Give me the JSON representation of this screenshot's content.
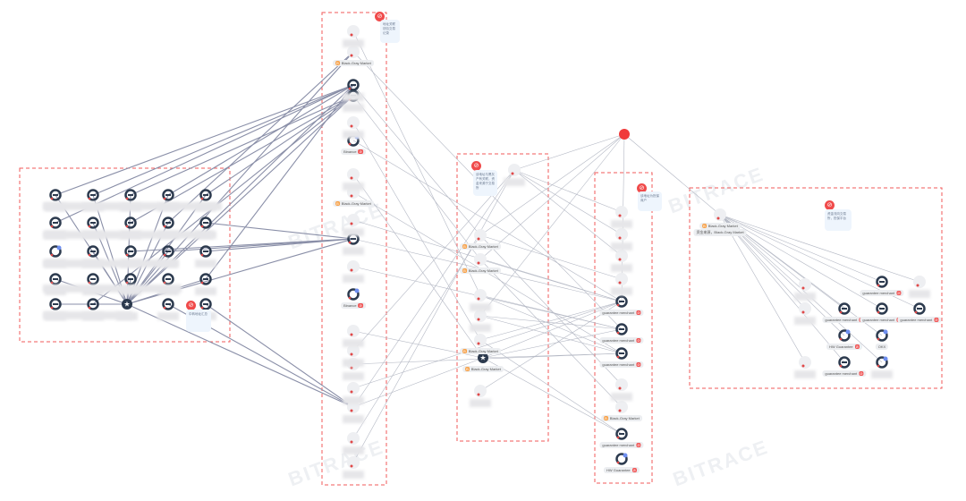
{
  "watermark": "BITRACE",
  "notes": [
    {
      "id": "n1",
      "text": "地址关联钱包交易记录"
    },
    {
      "id": "n2",
      "text": "该地址与黑灰产有关联，资金来源于交易所"
    },
    {
      "id": "n3",
      "text": "该地址为担保商户"
    },
    {
      "id": "n4",
      "text": "资金流向交易所，担保平台"
    },
    {
      "id": "n5",
      "text": "中转地址汇总"
    }
  ],
  "labels": {
    "black_gray_market": "Black-Gray Market",
    "binance": "Binance",
    "guarantee_merchant": "guarantee merchant",
    "hw_guarantee": "HW Guarantee",
    "okx": "OKX",
    "hub_sub": "资金来源，Black-Gray Market"
  },
  "nodes": [
    {
      "id": "L1",
      "type": "dark"
    },
    {
      "id": "L2",
      "type": "dark"
    },
    {
      "id": "L3",
      "type": "dark"
    },
    {
      "id": "L4",
      "type": "dark"
    },
    {
      "id": "L5",
      "type": "dark"
    },
    {
      "id": "L6",
      "type": "dark"
    },
    {
      "id": "L7",
      "type": "dark"
    },
    {
      "id": "L8",
      "type": "dark"
    },
    {
      "id": "L9",
      "type": "dark"
    },
    {
      "id": "L10",
      "type": "dark"
    },
    {
      "id": "L11",
      "type": "exchange"
    },
    {
      "id": "L12",
      "type": "dark"
    },
    {
      "id": "L13",
      "type": "dark"
    },
    {
      "id": "L14",
      "type": "dark"
    },
    {
      "id": "L15",
      "type": "dark"
    },
    {
      "id": "L16",
      "type": "dark"
    },
    {
      "id": "L17",
      "type": "dark"
    },
    {
      "id": "L18",
      "type": "dark"
    },
    {
      "id": "L19",
      "type": "dark"
    },
    {
      "id": "L20",
      "type": "dark"
    },
    {
      "id": "L21",
      "type": "dark"
    },
    {
      "id": "L22",
      "type": "dark"
    },
    {
      "id": "LS",
      "type": "star"
    },
    {
      "id": "L24",
      "type": "dark"
    },
    {
      "id": "L25",
      "type": "dark"
    },
    {
      "id": "A1",
      "type": "blank"
    },
    {
      "id": "A2",
      "type": "blank",
      "label": "black_gray_market"
    },
    {
      "id": "A3",
      "type": "dark"
    },
    {
      "id": "A4",
      "type": "dark"
    },
    {
      "id": "A5",
      "type": "blank"
    },
    {
      "id": "A6",
      "type": "exchange",
      "label": "binance"
    },
    {
      "id": "A7",
      "type": "blank"
    },
    {
      "id": "A8",
      "type": "blank",
      "label": "black_gray_market"
    },
    {
      "id": "A9",
      "type": "blank"
    },
    {
      "id": "A10",
      "type": "dark"
    },
    {
      "id": "A11",
      "type": "blank"
    },
    {
      "id": "A12",
      "type": "exchange",
      "label": "binance"
    },
    {
      "id": "A13",
      "type": "blank"
    },
    {
      "id": "A14",
      "type": "blank"
    },
    {
      "id": "A15",
      "type": "blank"
    },
    {
      "id": "A16",
      "type": "blank"
    },
    {
      "id": "A17",
      "type": "blank"
    },
    {
      "id": "A18",
      "type": "blank"
    },
    {
      "id": "A19",
      "type": "blank"
    },
    {
      "id": "B1",
      "type": "blank"
    },
    {
      "id": "B2",
      "type": "blank",
      "label": "black_gray_market"
    },
    {
      "id": "B3",
      "type": "blank",
      "label": "black_gray_market"
    },
    {
      "id": "B4",
      "type": "blank"
    },
    {
      "id": "B5",
      "type": "blank"
    },
    {
      "id": "B6",
      "type": "blank",
      "label": "black_gray_market"
    },
    {
      "id": "BS",
      "type": "star",
      "label": "black_gray_market"
    },
    {
      "id": "B8",
      "type": "blank"
    },
    {
      "id": "RED",
      "type": "red"
    },
    {
      "id": "C1",
      "type": "blank"
    },
    {
      "id": "C2",
      "type": "blank"
    },
    {
      "id": "C3",
      "type": "blank"
    },
    {
      "id": "C4",
      "type": "blank"
    },
    {
      "id": "C5",
      "type": "dark",
      "label": "guarantee_merchant"
    },
    {
      "id": "C6",
      "type": "dark",
      "label": "guarantee_merchant"
    },
    {
      "id": "C7",
      "type": "dark",
      "label": "guarantee_merchant"
    },
    {
      "id": "C8",
      "type": "blank"
    },
    {
      "id": "C9",
      "type": "blank",
      "label": "black_gray_market"
    },
    {
      "id": "C10",
      "type": "dark",
      "label": "guarantee_merchant"
    },
    {
      "id": "C11",
      "type": "exchange",
      "label": "hw_guarantee"
    },
    {
      "id": "HUB",
      "type": "blank",
      "label": "black_gray_market"
    },
    {
      "id": "R1",
      "type": "blank"
    },
    {
      "id": "R2",
      "type": "dark",
      "label": "guarantee_merchant"
    },
    {
      "id": "R3",
      "type": "blank"
    },
    {
      "id": "R4",
      "type": "blank"
    },
    {
      "id": "R5",
      "type": "dark",
      "label": "guarantee_merchant"
    },
    {
      "id": "R6",
      "type": "dark",
      "label": "guarantee_merchant"
    },
    {
      "id": "R7",
      "type": "dark",
      "label": "guarantee_merchant"
    },
    {
      "id": "R8",
      "type": "exchange",
      "label": "hw_guarantee"
    },
    {
      "id": "R9",
      "type": "exchange",
      "label": "okx"
    },
    {
      "id": "R10",
      "type": "blank"
    },
    {
      "id": "R11",
      "type": "dark",
      "label": "guarantee_merchant"
    },
    {
      "id": "R12",
      "type": "exchange"
    }
  ],
  "edges": [
    [
      "LS",
      "A3"
    ],
    [
      "LS",
      "A4"
    ],
    [
      "LS",
      "A2"
    ],
    [
      "L1",
      "A3"
    ],
    [
      "L2",
      "A3"
    ],
    [
      "L3",
      "A4"
    ],
    [
      "L4",
      "A3"
    ],
    [
      "L5",
      "A4"
    ],
    [
      "L6",
      "A3"
    ],
    [
      "L8",
      "A4"
    ],
    [
      "L9",
      "A2"
    ],
    [
      "L10",
      "A10"
    ],
    [
      "L13",
      "A10"
    ],
    [
      "L15",
      "A10"
    ],
    [
      "L20",
      "A3"
    ],
    [
      "L22",
      "A4"
    ],
    [
      "LS",
      "A10"
    ],
    [
      "LS",
      "A17"
    ],
    [
      "L25",
      "A17"
    ],
    [
      "L24",
      "A17"
    ],
    [
      "L14",
      "A10"
    ],
    [
      "LS",
      "L1"
    ],
    [
      "LS",
      "L2"
    ],
    [
      "LS",
      "L3"
    ],
    [
      "LS",
      "L4"
    ],
    [
      "LS",
      "L5"
    ],
    [
      "LS",
      "L7"
    ],
    [
      "LS",
      "L9"
    ],
    [
      "LS",
      "L12"
    ],
    [
      "LS",
      "L14"
    ],
    [
      "LS",
      "L16"
    ],
    [
      "LS",
      "L18"
    ],
    [
      "LS",
      "L20"
    ],
    [
      "LS",
      "L21"
    ],
    [
      "A1",
      "B4"
    ],
    [
      "A3",
      "B2"
    ],
    [
      "A4",
      "B3"
    ],
    [
      "A5",
      "B6"
    ],
    [
      "A7",
      "BS"
    ],
    [
      "A9",
      "C5"
    ],
    [
      "A10",
      "C5"
    ],
    [
      "A11",
      "C6"
    ],
    [
      "A13",
      "BS"
    ],
    [
      "A14",
      "B1"
    ],
    [
      "A15",
      "C7"
    ],
    [
      "A17",
      "B1"
    ],
    [
      "A17",
      "BS"
    ],
    [
      "A16",
      "C5"
    ],
    [
      "A18",
      "B2"
    ],
    [
      "A19",
      "B1"
    ],
    [
      "A6",
      "C5"
    ],
    [
      "A2",
      "C6"
    ],
    [
      "A8",
      "C7"
    ],
    [
      "B1",
      "RED"
    ],
    [
      "B2",
      "RED"
    ],
    [
      "B3",
      "C5"
    ],
    [
      "B4",
      "C6"
    ],
    [
      "B5",
      "C7"
    ],
    [
      "B6",
      "C5"
    ],
    [
      "BS",
      "C6"
    ],
    [
      "BS",
      "C7"
    ],
    [
      "B8",
      "C5"
    ],
    [
      "B2",
      "C8"
    ],
    [
      "B3",
      "C9"
    ],
    [
      "BS",
      "C10"
    ],
    [
      "B1",
      "C1"
    ],
    [
      "B1",
      "C2"
    ],
    [
      "B1",
      "C3"
    ],
    [
      "B2",
      "C4"
    ],
    [
      "BS",
      "C5"
    ],
    [
      "B5",
      "C6"
    ],
    [
      "B4",
      "C7"
    ],
    [
      "B6",
      "C10"
    ],
    [
      "RED",
      "HUB"
    ],
    [
      "RED",
      "C5"
    ],
    [
      "RED",
      "B3"
    ],
    [
      "RED",
      "B5"
    ],
    [
      "HUB",
      "R1"
    ],
    [
      "HUB",
      "R2"
    ],
    [
      "HUB",
      "R3"
    ],
    [
      "HUB",
      "R4"
    ],
    [
      "HUB",
      "R5"
    ],
    [
      "HUB",
      "R6"
    ],
    [
      "HUB",
      "R7"
    ],
    [
      "HUB",
      "R8"
    ],
    [
      "HUB",
      "R9"
    ],
    [
      "HUB",
      "R10"
    ],
    [
      "HUB",
      "R11"
    ],
    [
      "HUB",
      "R12"
    ]
  ]
}
